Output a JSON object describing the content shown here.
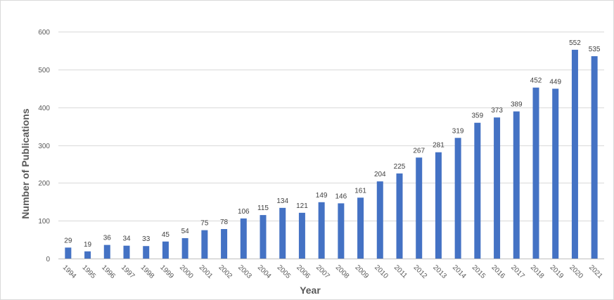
{
  "chart_data": {
    "type": "bar",
    "title": "",
    "xlabel": "Year",
    "ylabel": "Number of Publications",
    "ylim": [
      0,
      600
    ],
    "yticks": [
      0,
      100,
      200,
      300,
      400,
      500,
      600
    ],
    "grid": true,
    "legend": "none",
    "bar_color": "#4472c4",
    "categories": [
      "1994",
      "1995",
      "1996",
      "1997",
      "1998",
      "1999",
      "2000",
      "2001",
      "2002",
      "2003",
      "2004",
      "2005",
      "2006",
      "2007",
      "2008",
      "2009",
      "2010",
      "2011",
      "2012",
      "2013",
      "2014",
      "2015",
      "2016",
      "2017",
      "2018",
      "2019",
      "2020",
      "2021"
    ],
    "values": [
      29,
      19,
      36,
      34,
      33,
      45,
      54,
      75,
      78,
      106,
      115,
      134,
      121,
      149,
      146,
      161,
      204,
      225,
      267,
      281,
      319,
      359,
      373,
      389,
      452,
      449,
      552,
      535
    ]
  }
}
